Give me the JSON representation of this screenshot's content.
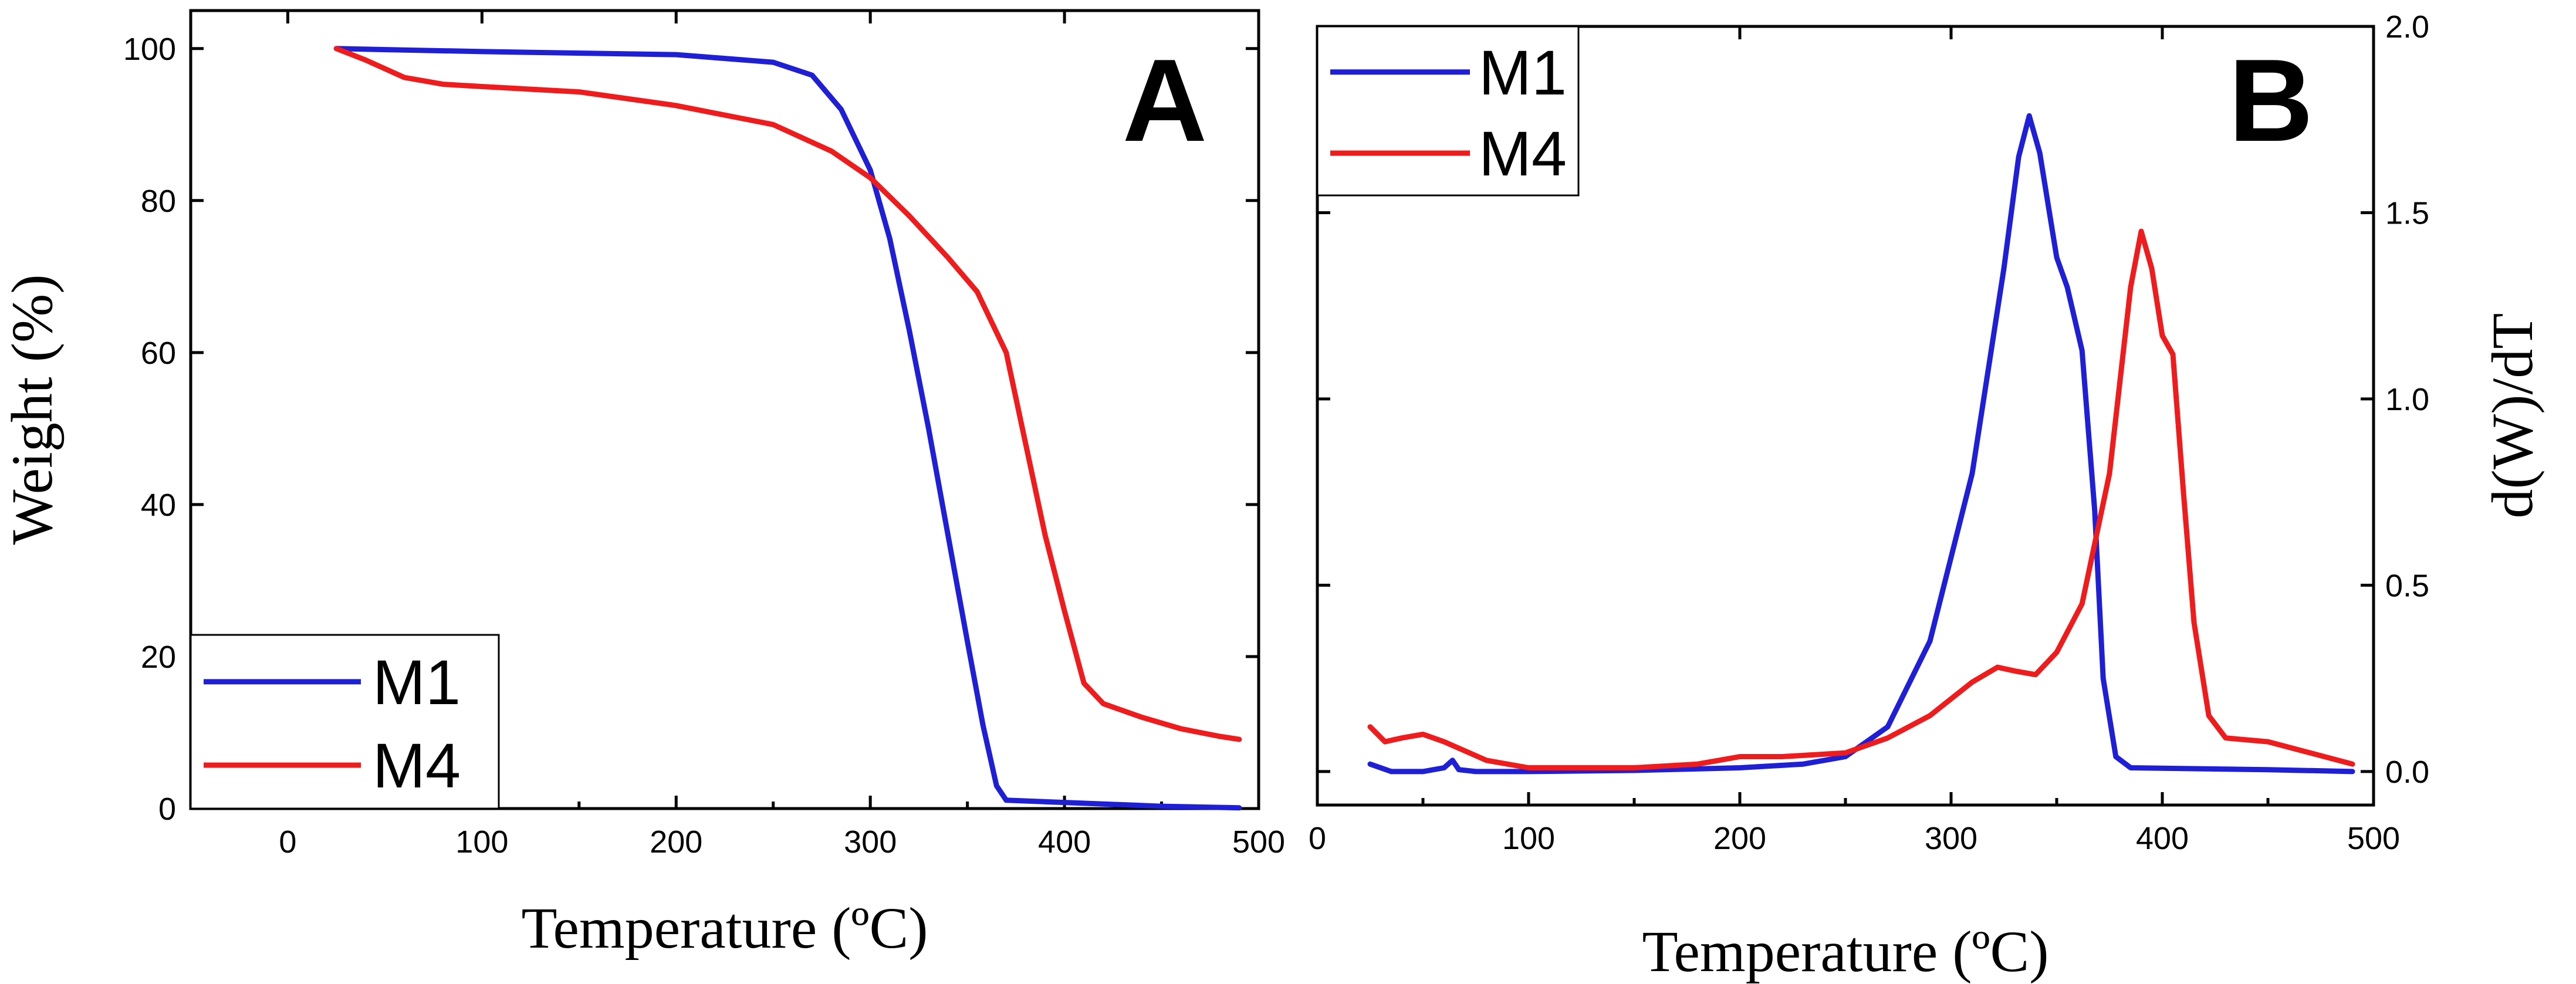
{
  "chart_data": [
    {
      "type": "line",
      "panel_label": "A",
      "xlabel": "Temperature (ºC)",
      "ylabel": "Weight (%)",
      "xlim": [
        -50,
        500
      ],
      "ylim": [
        0,
        105
      ],
      "xticks": [
        0,
        100,
        200,
        300,
        400,
        500
      ],
      "yticks": [
        0,
        20,
        40,
        60,
        80,
        100
      ],
      "grid": false,
      "legend_position": "bottom-left",
      "series": [
        {
          "name": "M1",
          "color": "#1f1fd6",
          "points": [
            [
              25,
              100
            ],
            [
              100,
              99.6
            ],
            [
              200,
              99.2
            ],
            [
              250,
              98.2
            ],
            [
              270,
              96.5
            ],
            [
              285,
              92
            ],
            [
              300,
              84
            ],
            [
              310,
              75
            ],
            [
              320,
              63
            ],
            [
              330,
              50
            ],
            [
              340,
              36
            ],
            [
              350,
              22
            ],
            [
              358,
              11
            ],
            [
              365,
              3
            ],
            [
              370,
              1.1
            ],
            [
              400,
              0.8
            ],
            [
              450,
              0.3
            ],
            [
              490,
              0.1
            ]
          ]
        },
        {
          "name": "M4",
          "color": "#ee1c1c",
          "points": [
            [
              25,
              100
            ],
            [
              40,
              98.5
            ],
            [
              60,
              96.2
            ],
            [
              80,
              95.3
            ],
            [
              100,
              95
            ],
            [
              150,
              94.3
            ],
            [
              200,
              92.5
            ],
            [
              250,
              90
            ],
            [
              280,
              86.5
            ],
            [
              300,
              83
            ],
            [
              320,
              78
            ],
            [
              340,
              72.5
            ],
            [
              355,
              68
            ],
            [
              370,
              60
            ],
            [
              380,
              48
            ],
            [
              390,
              36
            ],
            [
              400,
              26
            ],
            [
              410,
              16.5
            ],
            [
              420,
              13.8
            ],
            [
              440,
              12
            ],
            [
              460,
              10.5
            ],
            [
              480,
              9.5
            ],
            [
              490,
              9.1
            ]
          ]
        }
      ]
    },
    {
      "type": "line",
      "panel_label": "B",
      "xlabel": "Temperature (ºC)",
      "ylabel": "d(W)/dT",
      "xlim": [
        0,
        500
      ],
      "ylim": [
        -0.09,
        2.0
      ],
      "xticks": [
        0,
        100,
        200,
        300,
        400,
        500
      ],
      "yticks": [
        0.0,
        0.5,
        1.0,
        1.5,
        2.0
      ],
      "ytick_labels": [
        "0.0",
        "0.5",
        "1.0",
        "1.5",
        "2.0"
      ],
      "yaxis_side": "right",
      "grid": false,
      "legend_position": "top-left",
      "series": [
        {
          "name": "M1",
          "color": "#1f1fd6",
          "points": [
            [
              25,
              0.02
            ],
            [
              35,
              0.0
            ],
            [
              50,
              0.0
            ],
            [
              60,
              0.01
            ],
            [
              64,
              0.03
            ],
            [
              67,
              0.005
            ],
            [
              75,
              0.0
            ],
            [
              100,
              0.0
            ],
            [
              150,
              0.003
            ],
            [
              200,
              0.01
            ],
            [
              230,
              0.02
            ],
            [
              250,
              0.04
            ],
            [
              270,
              0.12
            ],
            [
              290,
              0.35
            ],
            [
              310,
              0.8
            ],
            [
              325,
              1.35
            ],
            [
              332,
              1.65
            ],
            [
              337,
              1.76
            ],
            [
              342,
              1.66
            ],
            [
              350,
              1.38
            ],
            [
              355,
              1.3
            ],
            [
              362,
              1.13
            ],
            [
              368,
              0.7
            ],
            [
              372,
              0.25
            ],
            [
              378,
              0.04
            ],
            [
              385,
              0.01
            ],
            [
              450,
              0.005
            ],
            [
              490,
              0.0
            ]
          ]
        },
        {
          "name": "M4",
          "color": "#ee1c1c",
          "points": [
            [
              25,
              0.12
            ],
            [
              32,
              0.08
            ],
            [
              40,
              0.09
            ],
            [
              50,
              0.1
            ],
            [
              60,
              0.08
            ],
            [
              80,
              0.03
            ],
            [
              100,
              0.01
            ],
            [
              150,
              0.01
            ],
            [
              180,
              0.02
            ],
            [
              200,
              0.04
            ],
            [
              220,
              0.04
            ],
            [
              250,
              0.05
            ],
            [
              270,
              0.09
            ],
            [
              290,
              0.15
            ],
            [
              310,
              0.24
            ],
            [
              322,
              0.28
            ],
            [
              330,
              0.27
            ],
            [
              340,
              0.26
            ],
            [
              350,
              0.32
            ],
            [
              362,
              0.45
            ],
            [
              375,
              0.8
            ],
            [
              385,
              1.3
            ],
            [
              390,
              1.45
            ],
            [
              395,
              1.35
            ],
            [
              400,
              1.17
            ],
            [
              405,
              1.12
            ],
            [
              410,
              0.75
            ],
            [
              415,
              0.4
            ],
            [
              422,
              0.15
            ],
            [
              430,
              0.09
            ],
            [
              450,
              0.08
            ],
            [
              470,
              0.05
            ],
            [
              490,
              0.02
            ]
          ]
        }
      ]
    }
  ]
}
